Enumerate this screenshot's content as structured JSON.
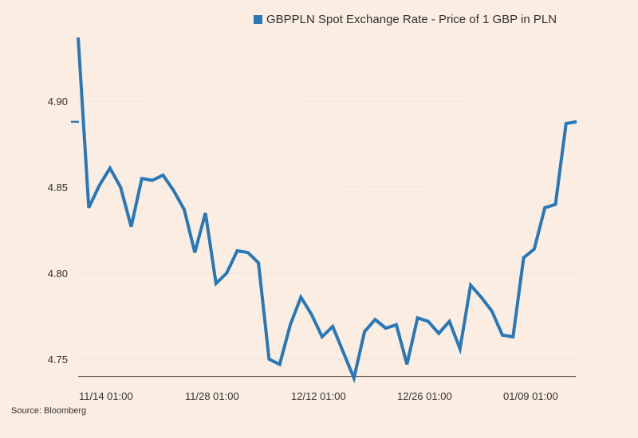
{
  "chart_data": {
    "type": "line",
    "title": "",
    "xlabel": "",
    "ylabel": "",
    "legend": {
      "position": "top",
      "entries": [
        "GBPPLN Spot Exchange Rate - Price of 1 GBP in PLN"
      ]
    },
    "series": [
      {
        "name": "GBPPLN Spot Exchange Rate - Price of 1 GBP in PLN",
        "color": "#2878b8",
        "values": [
          4.937,
          4.838,
          4.851,
          4.861,
          4.85,
          4.827,
          4.855,
          4.854,
          4.857,
          4.848,
          4.837,
          4.812,
          4.835,
          4.794,
          4.8,
          4.813,
          4.812,
          4.806,
          4.75,
          4.747,
          4.77,
          4.786,
          4.776,
          4.763,
          4.769,
          4.754,
          4.739,
          4.766,
          4.773,
          4.768,
          4.77,
          4.747,
          4.774,
          4.772,
          4.765,
          4.772,
          4.756,
          4.793,
          4.786,
          4.778,
          4.764,
          4.763,
          4.809,
          4.814,
          4.838,
          4.84,
          4.887,
          4.888
        ]
      }
    ],
    "x_ticks": [
      {
        "index": 0,
        "label": "11/14 01:00"
      },
      {
        "index": 10,
        "label": "11/28 01:00"
      },
      {
        "index": 20,
        "label": "12/12 01:00"
      },
      {
        "index": 30,
        "label": "12/26 01:00"
      },
      {
        "index": 40,
        "label": "01/09 01:00"
      }
    ],
    "y_ticks": [
      4.75,
      4.8,
      4.85,
      4.9
    ],
    "y_tick_labels": [
      "4.75",
      "4.80",
      "4.85",
      "4.90"
    ],
    "ylim": [
      4.74,
      4.94
    ],
    "last_value_marker": 4.888,
    "grid": "horizontal dotted",
    "source": "Source: Bloomberg"
  }
}
